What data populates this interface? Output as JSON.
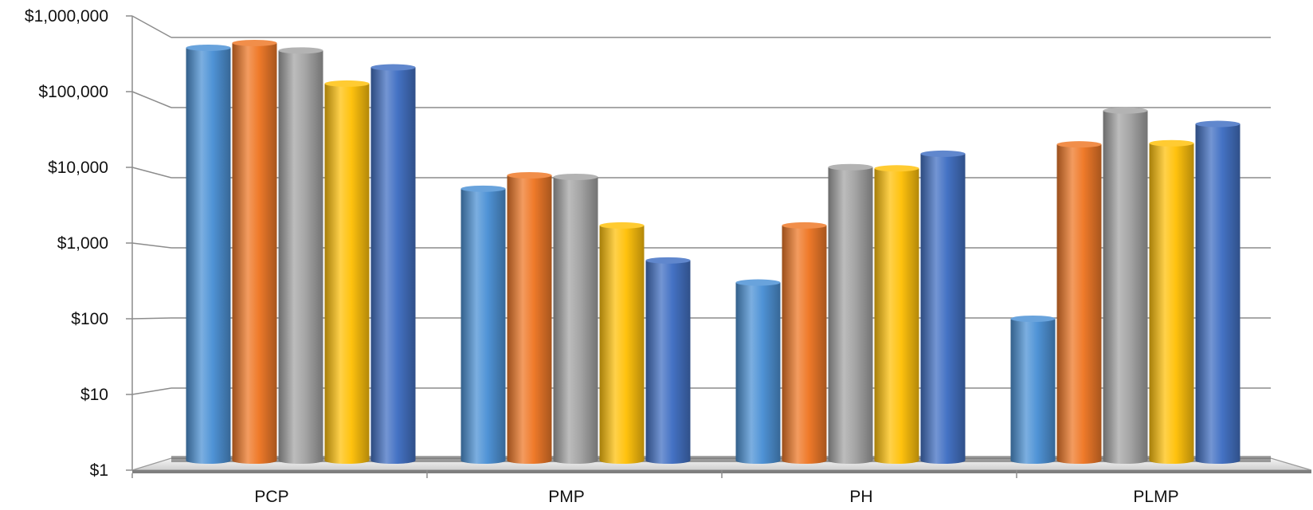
{
  "chart_data": {
    "type": "bar",
    "scale": "log",
    "grid": true,
    "legend": "none",
    "categories": [
      "PCP",
      "PMP",
      "PH",
      "PLMP"
    ],
    "y_ticks": [
      "$1",
      "$10",
      "$100",
      "$1,000",
      "$10,000",
      "$100,000",
      "$1,000,000"
    ],
    "y_tick_values": [
      1,
      10,
      100,
      1000,
      10000,
      100000,
      1000000
    ],
    "ylim": [
      1,
      1000000
    ],
    "series": [
      {
        "color": "#4f93d6",
        "values": [
          600000,
          6500,
          320,
          100
        ]
      },
      {
        "color": "#ef7a2a",
        "values": [
          700000,
          10000,
          2000,
          27000
        ]
      },
      {
        "color": "#a5a5a5",
        "values": [
          550000,
          9500,
          13000,
          80000
        ]
      },
      {
        "color": "#ffc20e",
        "values": [
          190000,
          2000,
          12500,
          28000
        ]
      },
      {
        "color": "#4472c4",
        "values": [
          320000,
          650,
          20000,
          52000
        ]
      }
    ]
  }
}
